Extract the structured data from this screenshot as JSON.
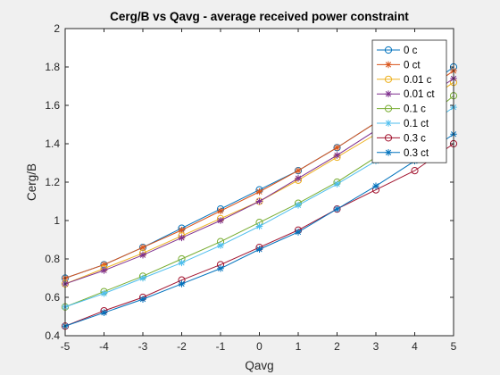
{
  "chart_data": {
    "type": "line",
    "title": "Cerg/B vs Qavg - average received power constraint",
    "xlabel": "Qavg",
    "ylabel": "Cerg/B",
    "xlim": [
      -5,
      5
    ],
    "ylim": [
      0.4,
      2
    ],
    "x_ticks": [
      "-5",
      "-4",
      "-3",
      "-2",
      "-1",
      "0",
      "1",
      "2",
      "3",
      "4",
      "5"
    ],
    "y_ticks": [
      "0.4",
      "0.6",
      "0.8",
      "1",
      "1.2",
      "1.4",
      "1.6",
      "1.8",
      "2"
    ],
    "grid": false,
    "legend_position": "top-right",
    "x": [
      -5,
      -4,
      -3,
      -2,
      -1,
      0,
      1,
      2,
      3,
      4,
      5
    ],
    "series": [
      {
        "name": "0 c",
        "color": "#0072BD",
        "marker": "circle",
        "values": [
          0.7,
          0.77,
          0.86,
          0.96,
          1.06,
          1.16,
          1.26,
          1.38,
          1.51,
          1.65,
          1.8
        ]
      },
      {
        "name": "0 ct",
        "color": "#D95319",
        "marker": "star",
        "values": [
          0.7,
          0.77,
          0.86,
          0.95,
          1.05,
          1.15,
          1.26,
          1.38,
          1.51,
          1.64,
          1.78
        ]
      },
      {
        "name": "0.01 c",
        "color": "#EDB120",
        "marker": "circle",
        "values": [
          0.67,
          0.75,
          0.83,
          0.92,
          1.01,
          1.1,
          1.21,
          1.33,
          1.45,
          1.58,
          1.72
        ]
      },
      {
        "name": "0.01 ct",
        "color": "#7E2F8E",
        "marker": "star",
        "values": [
          0.67,
          0.74,
          0.82,
          0.91,
          1.0,
          1.1,
          1.22,
          1.34,
          1.47,
          1.6,
          1.74
        ]
      },
      {
        "name": "0.1 c",
        "color": "#77AC30",
        "marker": "circle",
        "values": [
          0.55,
          0.63,
          0.71,
          0.8,
          0.89,
          0.99,
          1.09,
          1.2,
          1.33,
          1.48,
          1.65
        ]
      },
      {
        "name": "0.1 ct",
        "color": "#4DBEEE",
        "marker": "star",
        "values": [
          0.55,
          0.62,
          0.7,
          0.78,
          0.87,
          0.97,
          1.08,
          1.19,
          1.31,
          1.45,
          1.59
        ]
      },
      {
        "name": "0.3 c",
        "color": "#A2142F",
        "marker": "circle",
        "values": [
          0.45,
          0.53,
          0.6,
          0.69,
          0.77,
          0.86,
          0.95,
          1.06,
          1.16,
          1.26,
          1.4
        ]
      },
      {
        "name": "0.3 ct",
        "color": "#0072BD",
        "marker": "star",
        "values": [
          0.45,
          0.52,
          0.59,
          0.67,
          0.75,
          0.85,
          0.94,
          1.06,
          1.18,
          1.31,
          1.45
        ]
      }
    ]
  }
}
